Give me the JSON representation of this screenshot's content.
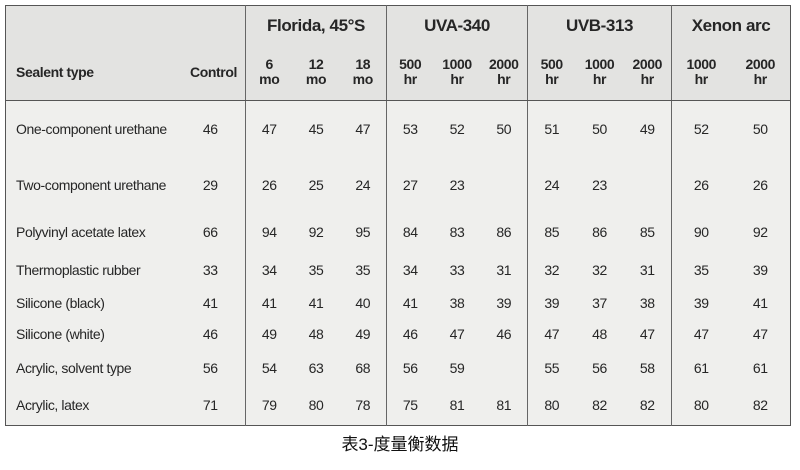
{
  "table": {
    "row_header": "Sealent type",
    "control_header": "Control",
    "groups": [
      {
        "title": "Florida, 45°S",
        "columns": [
          "6\nmo",
          "12\nmo",
          "18\nmo"
        ]
      },
      {
        "title": "UVA-340",
        "columns": [
          "500\nhr",
          "1000\nhr",
          "2000\nhr"
        ]
      },
      {
        "title": "UVB-313",
        "columns": [
          "500\nhr",
          "1000\nhr",
          "2000\nhr"
        ]
      },
      {
        "title": "Xenon arc",
        "columns": [
          "1000\nhr",
          "2000\nhr"
        ]
      }
    ],
    "rows": [
      [
        "One-component urethane",
        46,
        47,
        45,
        47,
        53,
        52,
        50,
        51,
        50,
        49,
        52,
        50
      ],
      [
        "Two-component urethane",
        29,
        26,
        25,
        24,
        27,
        23,
        null,
        24,
        23,
        null,
        26,
        26
      ],
      [
        "Polyvinyl acetate latex",
        66,
        94,
        92,
        95,
        84,
        83,
        86,
        85,
        86,
        85,
        90,
        92
      ],
      [
        "Thermoplastic rubber",
        33,
        34,
        35,
        35,
        34,
        33,
        31,
        32,
        32,
        31,
        35,
        39
      ],
      [
        "Silicone (black)",
        41,
        41,
        41,
        40,
        41,
        38,
        39,
        39,
        37,
        38,
        39,
        41
      ],
      [
        "Silicone (white)",
        46,
        49,
        48,
        49,
        46,
        47,
        46,
        47,
        48,
        47,
        47,
        47
      ],
      [
        "Acrylic, solvent type",
        56,
        54,
        63,
        68,
        56,
        59,
        null,
        55,
        56,
        58,
        61,
        61
      ],
      [
        "Acrylic, latex",
        71,
        79,
        80,
        78,
        75,
        81,
        81,
        80,
        82,
        82,
        80,
        82
      ]
    ]
  },
  "caption": "表3-度量衡数据"
}
